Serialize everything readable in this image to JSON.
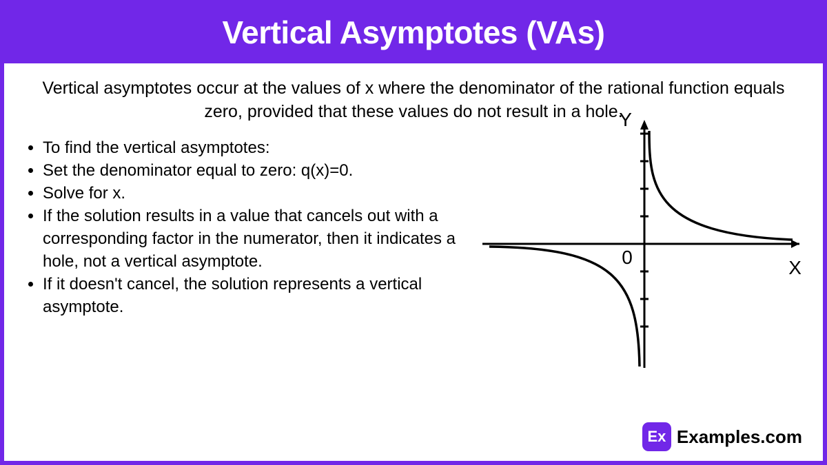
{
  "header": {
    "title": "Vertical Asymptotes (VAs)"
  },
  "intro": "Vertical asymptotes occur at the values of x where the denominator of the rational function equals zero, provided that these values do not result in a hole.",
  "bullets": [
    "To find the vertical asymptotes:",
    "Set the denominator equal to zero: q(x)=0.",
    "Solve for x.",
    "If the solution results in a value that cancels out with a corresponding factor in the numerator, then it indicates a hole, not a vertical asymptote.",
    "If it doesn't cancel, the solution represents a vertical asymptote."
  ],
  "graph": {
    "y_label": "Y",
    "x_label": "X",
    "origin_label": "0",
    "axis_color": "#000000",
    "curve_color": "#000000",
    "stroke_width": 3,
    "tick_length": 12,
    "ticks_y": [
      -120,
      -80,
      -40,
      40,
      80,
      120,
      160
    ]
  },
  "brand": {
    "badge": "Ex",
    "name": "Examples.com"
  },
  "colors": {
    "accent": "#7127e8",
    "bg": "#ffffff",
    "text": "#000000"
  }
}
